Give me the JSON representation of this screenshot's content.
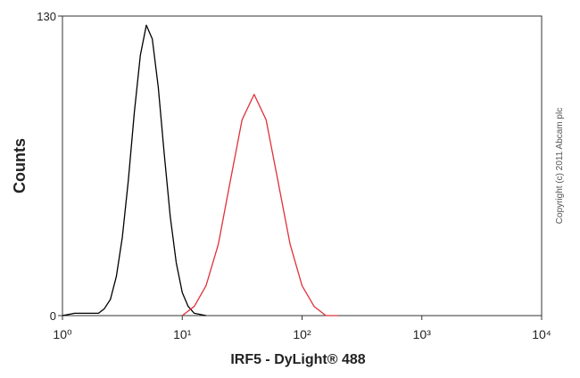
{
  "chart_data": {
    "type": "line",
    "xlabel": "IRF5 - DyLight® 488",
    "ylabel": "Counts",
    "annotation": "Copyright (c) 2011 Abcam plc",
    "xscale": "log",
    "xlim": [
      1,
      10000
    ],
    "ylim": [
      0,
      130
    ],
    "xticks": [
      {
        "value": 1,
        "label": "10⁰"
      },
      {
        "value": 10,
        "label": "10¹"
      },
      {
        "value": 100,
        "label": "10²"
      },
      {
        "value": 1000,
        "label": "10³"
      },
      {
        "value": 10000,
        "label": "10⁴"
      }
    ],
    "yticks": [
      0,
      130
    ],
    "series": [
      {
        "color": "#000000",
        "x": [
          1,
          1.26,
          1.58,
          2,
          2.24,
          2.51,
          2.82,
          3.16,
          3.55,
          3.98,
          4.47,
          5.01,
          5.62,
          6.31,
          7.08,
          7.94,
          8.91,
          10,
          11.2,
          12.6,
          15.8
        ],
        "values": [
          0,
          1,
          1,
          1,
          3,
          7,
          17,
          34,
          59,
          88,
          113,
          126,
          120,
          99,
          70,
          43,
          23,
          10,
          4,
          1,
          0
        ]
      },
      {
        "color": "#e0303a",
        "x": [
          10,
          12.6,
          15.8,
          20,
          25.1,
          31.6,
          39.8,
          50.1,
          63.1,
          79.4,
          100,
          126,
          158,
          200
        ],
        "values": [
          0,
          4,
          13,
          31,
          58,
          85,
          96,
          85,
          58,
          31,
          13,
          4,
          0,
          0
        ]
      }
    ]
  }
}
